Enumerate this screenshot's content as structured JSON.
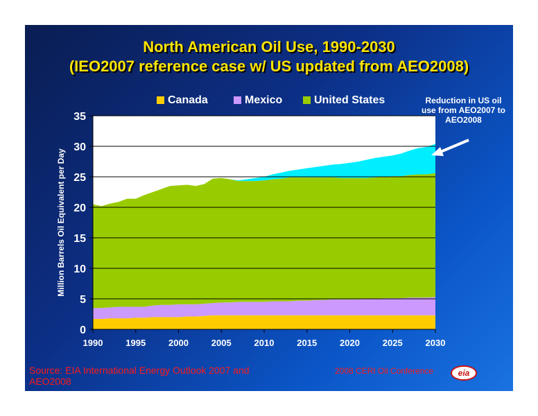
{
  "slide": {
    "title_line1": "North American Oil Use, 1990-2030",
    "title_line2": "(IEO2007 reference case w/ US updated from AEO2008)",
    "annotation": "Reduction in US oil use from AEO2007 to AEO2008",
    "source": "Source:  EIA International Energy Outlook 2007 and AEO2008",
    "conference": "2008 CERI Oil Conference",
    "logo_text": "eia",
    "logo_icon": "eia-logo-icon"
  },
  "chart_data": {
    "type": "area",
    "stacked": true,
    "title": "",
    "xlabel": "",
    "ylabel": "Million Barrels Oil Equivalent per Day",
    "xlim": [
      1990,
      2030
    ],
    "ylim": [
      0,
      35
    ],
    "x_ticks": [
      1990,
      1995,
      2000,
      2005,
      2010,
      2015,
      2020,
      2025,
      2030
    ],
    "y_ticks": [
      0,
      5,
      10,
      15,
      20,
      25,
      30,
      35
    ],
    "grid": "horizontal",
    "legend_position": "top",
    "x": [
      1990,
      1991,
      1992,
      1993,
      1994,
      1995,
      1996,
      1997,
      1998,
      1999,
      2000,
      2001,
      2002,
      2003,
      2004,
      2005,
      2006,
      2007,
      2008,
      2009,
      2010,
      2011,
      2012,
      2013,
      2014,
      2015,
      2016,
      2017,
      2018,
      2019,
      2020,
      2021,
      2022,
      2023,
      2024,
      2025,
      2026,
      2027,
      2028,
      2029,
      2030
    ],
    "series": [
      {
        "name": "Canada",
        "color": "#ffcc00",
        "values": [
          1.7,
          1.7,
          1.8,
          1.8,
          1.8,
          1.9,
          1.9,
          2.0,
          2.0,
          2.0,
          2.0,
          2.1,
          2.1,
          2.2,
          2.3,
          2.3,
          2.3,
          2.3,
          2.3,
          2.3,
          2.3,
          2.3,
          2.3,
          2.3,
          2.3,
          2.3,
          2.3,
          2.3,
          2.3,
          2.3,
          2.3,
          2.3,
          2.3,
          2.3,
          2.3,
          2.3,
          2.3,
          2.3,
          2.3,
          2.3,
          2.3
        ]
      },
      {
        "name": "Mexico",
        "color": "#cc99ff",
        "values": [
          1.8,
          1.8,
          1.8,
          1.9,
          1.9,
          1.8,
          1.8,
          1.9,
          2.0,
          2.0,
          2.1,
          2.0,
          2.0,
          2.0,
          2.0,
          2.1,
          2.1,
          2.2,
          2.2,
          2.2,
          2.2,
          2.3,
          2.3,
          2.3,
          2.4,
          2.4,
          2.5,
          2.5,
          2.6,
          2.6,
          2.6,
          2.6,
          2.7,
          2.7,
          2.8,
          2.8,
          2.8,
          2.9,
          2.9,
          2.9,
          3.0
        ]
      },
      {
        "name": "United States",
        "color": "#99cc00",
        "values": [
          17.0,
          16.7,
          17.0,
          17.2,
          17.7,
          17.7,
          18.3,
          18.6,
          19.0,
          19.5,
          19.5,
          19.6,
          19.4,
          19.6,
          20.4,
          20.4,
          20.2,
          19.8,
          19.8,
          19.8,
          19.9,
          20.0,
          20.1,
          20.3,
          20.2,
          20.2,
          20.1,
          20.1,
          20.0,
          19.9,
          19.9,
          19.9,
          19.8,
          19.9,
          19.9,
          20.0,
          20.0,
          20.1,
          20.2,
          20.2,
          20.3
        ]
      },
      {
        "name": "Reduction in US oil use from AEO2007 to AEO2008",
        "color": "#00eeff",
        "values": [
          0,
          0,
          0,
          0,
          0,
          0,
          0,
          0,
          0,
          0,
          0,
          0,
          0,
          0,
          0,
          0,
          0,
          0.1,
          0.3,
          0.5,
          0.6,
          0.8,
          1.0,
          1.1,
          1.3,
          1.5,
          1.7,
          1.9,
          2.1,
          2.3,
          2.5,
          2.7,
          3.0,
          3.2,
          3.3,
          3.4,
          3.7,
          4.0,
          4.3,
          4.5,
          4.8
        ]
      }
    ]
  }
}
